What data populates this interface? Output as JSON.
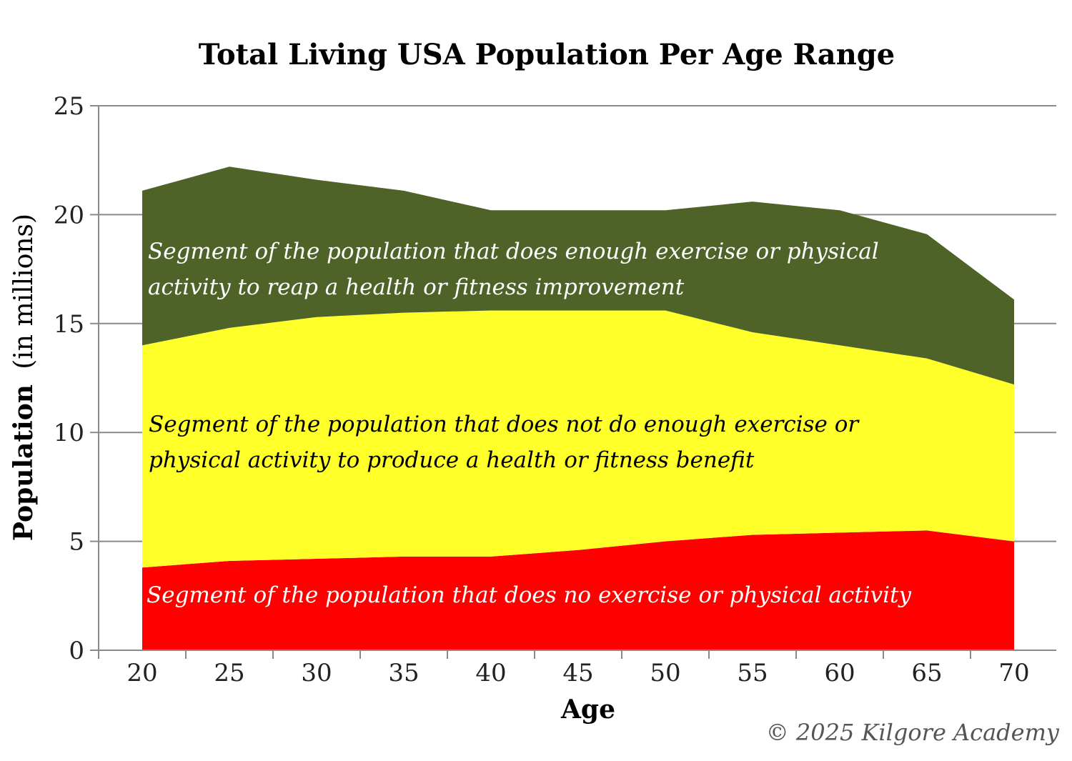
{
  "chart_data": {
    "type": "area",
    "stacked": true,
    "title": "Total Living USA Population Per Age Range",
    "xlabel": "Age",
    "ylabel_bold": "Population",
    "ylabel_rest": "(in millions)",
    "x": [
      20,
      25,
      30,
      35,
      40,
      45,
      50,
      55,
      60,
      65,
      70
    ],
    "x_ticks": [
      "20",
      "25",
      "30",
      "35",
      "40",
      "45",
      "50",
      "55",
      "60",
      "65",
      "70"
    ],
    "y_ticks": [
      "0",
      "5",
      "10",
      "15",
      "20",
      "25"
    ],
    "ylim": [
      0,
      25
    ],
    "grid": "horizontal",
    "series": [
      {
        "label_lines": [
          "Segment of the population that does no exercise or physical activity"
        ],
        "color": "#ff0000",
        "label_color": "#ffffff",
        "values": [
          3.8,
          4.1,
          4.2,
          4.3,
          4.3,
          4.6,
          5.0,
          5.3,
          5.4,
          5.5,
          5.0
        ]
      },
      {
        "label_lines": [
          "Segment of the population that does not do enough exercise or",
          "physical activity to produce a health or fitness benefit"
        ],
        "color": "#ffff2a",
        "label_color": "#000000",
        "values": [
          10.2,
          10.7,
          11.1,
          11.2,
          11.3,
          11.0,
          10.6,
          9.3,
          8.6,
          7.9,
          7.2
        ]
      },
      {
        "label_lines": [
          "Segment of the population that does enough exercise or physical",
          "activity to reap a health or fitness improvement"
        ],
        "color": "#4f6228",
        "label_color": "#ffffff",
        "values": [
          7.1,
          7.4,
          6.3,
          5.6,
          4.6,
          4.6,
          4.6,
          6.0,
          6.2,
          5.7,
          3.9
        ]
      }
    ]
  },
  "copyright": "© 2025 Kilgore Academy"
}
